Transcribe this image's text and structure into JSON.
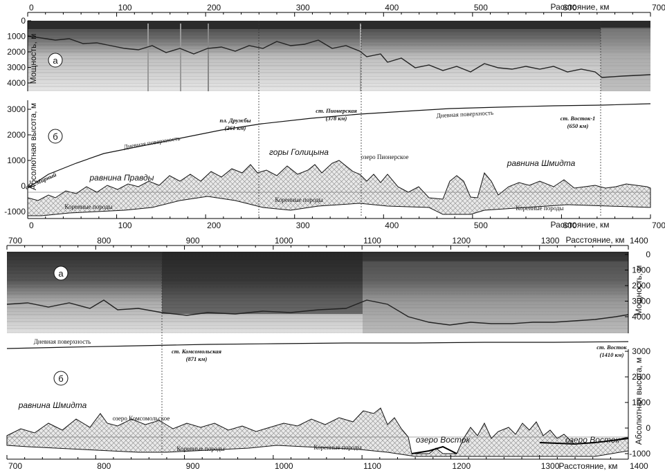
{
  "x_axis_label": "Расстояние, км",
  "y_label_thickness": "Мощность, м",
  "y_label_altitude": "Абсолютная высота, м",
  "surface_label": "Дневная поверхность",
  "bedrock_label": "Коренные породы",
  "panel_a": "а",
  "panel_b": "б",
  "top": {
    "x_ticks": [
      "0",
      "100",
      "200",
      "300",
      "400",
      "500",
      "600",
      "700"
    ],
    "thick_ticks": [
      "0",
      "1000",
      "2000",
      "3000",
      "4000"
    ],
    "alt_ticks": [
      "3000",
      "2000",
      "1000",
      "0",
      "-1000"
    ],
    "stations": [
      {
        "name": "обс. Мирный"
      },
      {
        "name": "пл. Дружбы",
        "km": "(261 км)"
      },
      {
        "name": "ст. Пионерская",
        "km": "(378 км)"
      },
      {
        "name": "ст. Восток-1",
        "km": "(650 км)"
      }
    ],
    "regions": [
      "равнина Правды",
      "горы Голицына",
      "равнина Шмидта"
    ],
    "lake": "озеро Пионерское"
  },
  "bottom": {
    "x_ticks": [
      "700",
      "800",
      "900",
      "1000",
      "1100",
      "1200",
      "1300",
      "1400"
    ],
    "thick_ticks": [
      "0",
      "1000",
      "2000",
      "3000",
      "4000"
    ],
    "alt_ticks": [
      "3000",
      "2000",
      "1000",
      "0",
      "-1000"
    ],
    "stations": [
      {
        "name": "ст. Комсомольская",
        "km": "(871 км)"
      },
      {
        "name": "ст. Восток",
        "km": "(1410 км)"
      }
    ],
    "regions": [
      "равнина Шмидта"
    ],
    "lakes": [
      "озеро Комсомольское",
      "озеро Восток",
      "озеро Восток"
    ]
  }
}
